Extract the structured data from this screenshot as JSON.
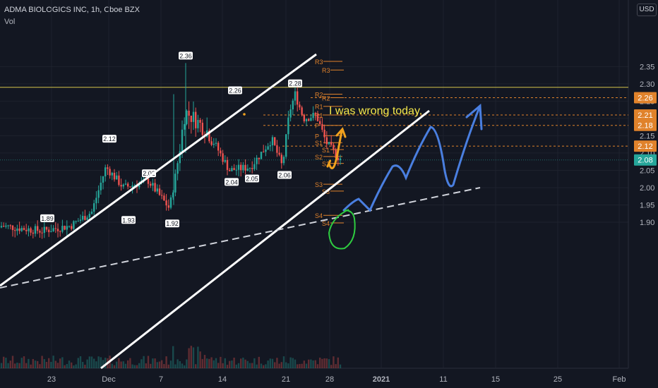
{
  "header": {
    "symbol_line": "ADMA BIOLOGICS INC, 1h, Cboe BZX",
    "indicator": "Vol",
    "currency": "USD"
  },
  "chart_data": {
    "type": "candlestick",
    "title": "ADMA BIOLOGICS INC, 1h, Cboe BZX",
    "x_tick_labels": [
      "23",
      "Dec",
      "7",
      "14",
      "21",
      "28",
      "2021",
      "11",
      "15",
      "25",
      "Feb"
    ],
    "y_ticks": [
      1.9,
      1.95,
      2.0,
      2.05,
      2.1,
      2.15,
      2.2,
      2.25,
      2.3,
      2.35
    ],
    "ylim": [
      1.86,
      2.38
    ],
    "last_price": 2.08,
    "horizontal_level": 2.29,
    "price_labels": [
      {
        "value": 2.26,
        "text": "2.26"
      },
      {
        "value": 2.21,
        "text": "2.21"
      },
      {
        "value": 2.18,
        "text": "2.18"
      },
      {
        "value": 2.12,
        "text": "2.12"
      },
      {
        "value": 2.08,
        "text": "2.08"
      }
    ],
    "high_low_markers": [
      {
        "text": "2.36",
        "value": 2.36,
        "kind": "high"
      },
      {
        "text": "2.28",
        "value": 2.28,
        "kind": "high"
      },
      {
        "text": "2.26",
        "value": 2.26,
        "kind": "high"
      },
      {
        "text": "2.12",
        "value": 2.12,
        "kind": "high"
      },
      {
        "text": "2.02",
        "value": 2.02,
        "kind": "high"
      },
      {
        "text": "1.89",
        "value": 1.89,
        "kind": "high"
      },
      {
        "text": "2.04",
        "value": 2.04,
        "kind": "low"
      },
      {
        "text": "2.05",
        "value": 2.05,
        "kind": "low"
      },
      {
        "text": "2.06",
        "value": 2.06,
        "kind": "low"
      },
      {
        "text": "1.93",
        "value": 1.93,
        "kind": "low"
      },
      {
        "text": "1.92",
        "value": 1.92,
        "kind": "low"
      }
    ],
    "pivot_levels": [
      {
        "label": "R3",
        "value": 2.365
      },
      {
        "label": "R3",
        "value": 2.34
      },
      {
        "label": "R2",
        "value": 2.27
      },
      {
        "label": "R2",
        "value": 2.26
      },
      {
        "label": "R1",
        "value": 2.235
      },
      {
        "label": "R1",
        "value": 2.21
      },
      {
        "label": "P",
        "value": 2.18
      },
      {
        "label": "P",
        "value": 2.15
      },
      {
        "label": "S1",
        "value": 2.13
      },
      {
        "label": "S1",
        "value": 2.11
      },
      {
        "label": "S2",
        "value": 2.09
      },
      {
        "label": "S2",
        "value": 2.07
      },
      {
        "label": "S3",
        "value": 2.01
      },
      {
        "label": "S3",
        "value": 1.99
      },
      {
        "label": "S4",
        "value": 1.92
      },
      {
        "label": "S4",
        "value": 1.898
      }
    ],
    "annotation": "I was wrong today.",
    "colors": {
      "up": "#26a69a",
      "down": "#ef5350",
      "pivot": "#e0822b",
      "annotation": "#f5e84a",
      "channel": "#ffffff",
      "projection": "#4a7fe0",
      "level_line": "#d4c44a",
      "circle": "#2ecc40"
    }
  }
}
